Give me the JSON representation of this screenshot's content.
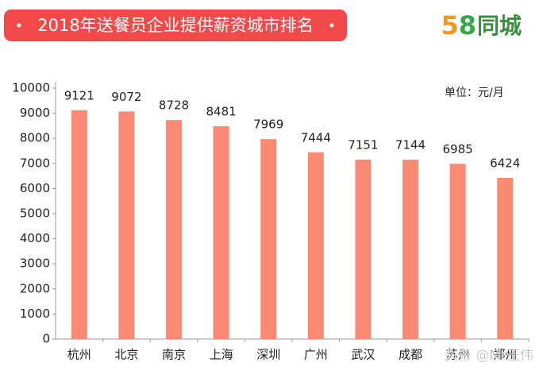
{
  "chart_data": {
    "type": "bar",
    "title": "2018年送餐员企业提供薪资城市排名",
    "logo": {
      "number": "58",
      "name": "同城"
    },
    "unit_note": "单位：元/月",
    "categories": [
      "杭州",
      "北京",
      "南京",
      "上海",
      "深圳",
      "广州",
      "武汉",
      "成都",
      "苏州",
      "郑州"
    ],
    "values": [
      9121,
      9072,
      8728,
      8481,
      7969,
      7444,
      7151,
      7144,
      6985,
      6424
    ],
    "color": "#fa8a74",
    "ylim": [
      0,
      10000
    ],
    "yticks": [
      0,
      1000,
      2000,
      3000,
      4000,
      5000,
      6000,
      7000,
      8000,
      9000,
      10000
    ],
    "grid": false,
    "watermark": "头条 @Mr王伟"
  }
}
